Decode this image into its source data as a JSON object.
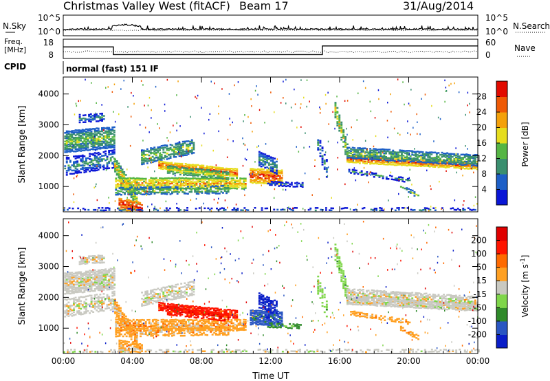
{
  "header": {
    "title": "Christmas Valley West (fitACF)",
    "beam": "Beam 17",
    "date": "31/Aug/2014"
  },
  "nsky_panel": {
    "left_label": "N.Sky",
    "left_ticks": [
      "10^5",
      "10^0"
    ],
    "right_ticks": [
      "10^5",
      "10^0"
    ],
    "right_label": "N.Search"
  },
  "freq_panel": {
    "left_label_1": "Freq.",
    "left_label_2": "[MHz]",
    "left_ticks": [
      "18",
      "8"
    ],
    "right_ticks": [
      "60",
      "0"
    ],
    "right_label": "Nave",
    "freq_steps_mhz": [
      {
        "t_start": 0.0,
        "t_end": 2.9,
        "value": 14.0
      },
      {
        "t_start": 2.9,
        "t_end": 15.0,
        "value": 10.0
      },
      {
        "t_start": 15.0,
        "t_end": 24.0,
        "value": 14.5
      }
    ],
    "nave_approx": 21
  },
  "cpid": {
    "label": "CPID",
    "program": "normal (fast) 151 IF"
  },
  "chart_data": [
    {
      "type": "heatmap",
      "name": "power",
      "ylabel": "Slant Range [km]",
      "y_ticks": [
        1000,
        2000,
        3000,
        4000
      ],
      "ylim": [
        180,
        4550
      ],
      "x_ticks": [
        "00:00",
        "04:00",
        "08:00",
        "12:00",
        "16:00",
        "20:00",
        "00:00"
      ],
      "xlim_hours": [
        0,
        24
      ],
      "colorbar": {
        "label": "Power [dB]",
        "ticks": [
          "4",
          "8",
          "12",
          "16",
          "20",
          "24",
          "28"
        ],
        "colors": [
          "#0a16d6",
          "#1d5fc7",
          "#3a8f6f",
          "#55b544",
          "#e6dd1e",
          "#f4a10a",
          "#ef5a05",
          "#e20a00"
        ]
      }
    },
    {
      "type": "heatmap",
      "name": "velocity",
      "ylabel": "Slant Range [km]",
      "y_ticks": [
        1000,
        2000,
        3000,
        4000
      ],
      "ylim": [
        180,
        4550
      ],
      "x_ticks": [
        "00:00",
        "04:00",
        "08:00",
        "12:00",
        "16:00",
        "20:00",
        "00:00"
      ],
      "xlim_hours": [
        0,
        24
      ],
      "xlabel": "Time UT",
      "colorbar": {
        "label": "Velocity [m s",
        "label_sup": "-1",
        "label_close": "]",
        "ticks": [
          "200",
          "100",
          "50",
          "15",
          "-15",
          "-50",
          "-100",
          "-200"
        ],
        "colors": [
          "#0a1ec8",
          "#2a56c2",
          "#2f8a2a",
          "#7fd64a",
          "#c9c9c1",
          "#ffa022",
          "#ff6a00",
          "#ff1400",
          "#e00000"
        ]
      }
    }
  ]
}
